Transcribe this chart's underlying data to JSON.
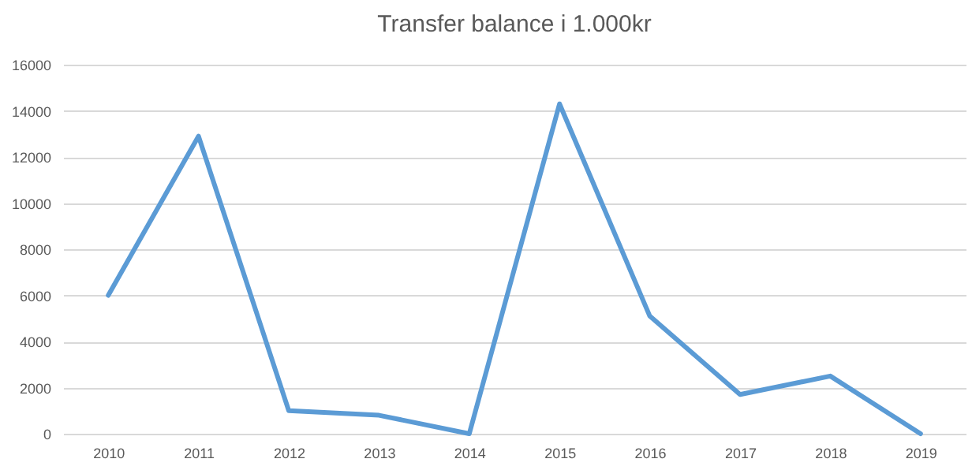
{
  "chart_data": {
    "type": "line",
    "title": "Transfer balance  i 1.000kr",
    "categories": [
      "2010",
      "2011",
      "2012",
      "2013",
      "2014",
      "2015",
      "2016",
      "2017",
      "2018",
      "2019"
    ],
    "series": [
      {
        "color": "#5b9bd5",
        "values": [
          6000,
          12900,
          1000,
          800,
          0,
          14300,
          5100,
          1700,
          2500,
          0
        ]
      }
    ],
    "ylim": [
      0,
      16000
    ],
    "yticks": [
      0,
      2000,
      4000,
      6000,
      8000,
      10000,
      12000,
      14000,
      16000
    ],
    "grid": "y",
    "legend": false,
    "marker": "none",
    "line_style": "solid"
  }
}
